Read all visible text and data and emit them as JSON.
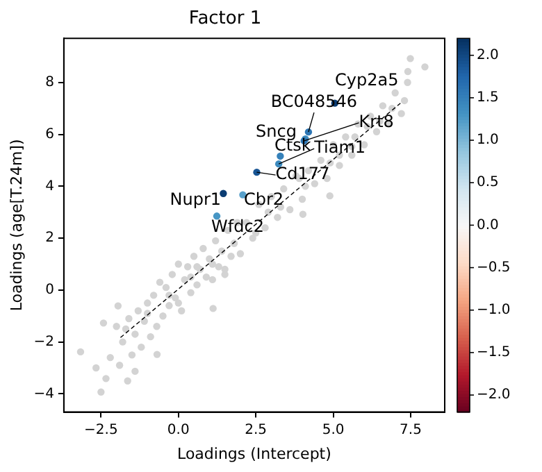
{
  "chart_data": {
    "type": "scatter",
    "title": "Factor 1",
    "xlabel": "Loadings (Intercept)",
    "ylabel": "Loadings (age[T.24m])",
    "xlim": [
      -3.7,
      8.6
    ],
    "ylim": [
      -4.7,
      9.7
    ],
    "xticks": [
      {
        "value": -2.5,
        "label": "−2.5"
      },
      {
        "value": 0,
        "label": "0.0"
      },
      {
        "value": 2.5,
        "label": "2.5"
      },
      {
        "value": 5,
        "label": "5.0"
      },
      {
        "value": 7.5,
        "label": "7.5"
      }
    ],
    "yticks": [
      {
        "value": -4,
        "label": "−4"
      },
      {
        "value": -2,
        "label": "−2"
      },
      0,
      2,
      4,
      6,
      8
    ],
    "clim": [
      -2.2,
      2.2
    ],
    "cticks": [
      {
        "value": -2,
        "label": "−2.0"
      },
      {
        "value": -1.5,
        "label": "−1.5"
      },
      {
        "value": -1,
        "label": "−1.0"
      },
      {
        "value": -0.5,
        "label": "−0.5"
      },
      {
        "value": 0,
        "label": "0.0"
      },
      {
        "value": 0.5,
        "label": "0.5"
      },
      {
        "value": 1,
        "label": "1.0"
      },
      {
        "value": 1.5,
        "label": "1.5"
      },
      {
        "value": 2,
        "label": "2.0"
      }
    ],
    "grid": false,
    "series": [
      {
        "color": "#d3d3d3",
        "marker": "circle",
        "x": [
          -3.16,
          -2.5,
          -2.66,
          -2.34,
          -2.42,
          -1.95,
          -1.64,
          -1.4,
          -0.69,
          1.12,
          4.02,
          4.89,
          5.6,
          7.49,
          7.96,
          7.41,
          -2.2,
          -2.0,
          -1.9,
          -1.8,
          -1.6,
          -1.5,
          -1.4,
          -1.3,
          -1.2,
          -1.1,
          -1.0,
          -0.9,
          -0.8,
          -0.7,
          -0.6,
          -0.5,
          -0.4,
          -0.3,
          -0.2,
          -0.1,
          0.0,
          0.1,
          0.2,
          0.3,
          0.4,
          0.5,
          0.6,
          0.7,
          0.8,
          0.9,
          1.0,
          1.1,
          1.2,
          1.3,
          1.4,
          1.5,
          1.6,
          1.7,
          1.8,
          1.9,
          2.0,
          2.2,
          2.4,
          2.6,
          2.8,
          3.0,
          3.2,
          3.4,
          3.6,
          3.8,
          4.0,
          4.2,
          4.4,
          4.6,
          4.8,
          5.0,
          5.2,
          5.4,
          5.6,
          5.8,
          6.0,
          6.2,
          6.4,
          6.6,
          6.8,
          7.0,
          7.2,
          7.4,
          -1.7,
          -1.0,
          -0.3,
          0.4,
          1.1,
          1.8,
          2.5,
          3.3,
          4.1,
          4.9,
          5.7,
          6.5,
          7.3,
          0.0,
          0.6,
          1.5,
          2.9,
          3.9,
          5.2,
          6.1,
          6.9
        ],
        "values": [
          -2.38,
          -3.93,
          -3.0,
          -3.41,
          -1.27,
          -0.61,
          -3.5,
          -3.13,
          -2.48,
          -0.71,
          2.92,
          3.63,
          5.53,
          8.92,
          8.6,
          8.42,
          -2.6,
          -1.4,
          -2.9,
          -2.0,
          -1.1,
          -2.5,
          -1.7,
          -0.8,
          -2.2,
          -1.2,
          -0.5,
          -1.8,
          -0.2,
          -1.4,
          0.3,
          -1.0,
          0.1,
          -0.6,
          0.6,
          -0.3,
          1.0,
          -0.8,
          0.4,
          0.9,
          -0.1,
          1.3,
          0.2,
          0.8,
          1.6,
          0.5,
          1.2,
          0.4,
          1.9,
          0.9,
          1.5,
          0.8,
          2.3,
          1.3,
          1.8,
          2.6,
          1.4,
          2.6,
          2.0,
          3.3,
          2.4,
          3.6,
          2.8,
          3.9,
          3.1,
          4.4,
          3.5,
          4.6,
          4.1,
          5.0,
          4.3,
          5.6,
          4.8,
          5.9,
          5.2,
          6.4,
          5.6,
          6.7,
          6.1,
          7.1,
          6.4,
          7.6,
          6.8,
          8.0,
          -1.5,
          -0.9,
          -0.2,
          0.5,
          1.0,
          1.8,
          2.2,
          3.2,
          4.0,
          4.9,
          5.9,
          6.5,
          7.3,
          -0.5,
          0.9,
          0.6,
          3.0,
          4.3,
          5.2,
          6.3,
          7.0
        ]
      },
      {
        "type": "line",
        "color": "#000000",
        "line_style": "dashed",
        "marker": "none",
        "x": [
          -1.87,
          7.17
        ],
        "values": [
          -1.83,
          7.2
        ]
      },
      {
        "x": [
          5.05,
          4.2,
          4.1,
          4.06,
          3.29,
          3.24,
          2.53,
          1.45,
          2.08,
          1.24
        ],
        "values": [
          7.2,
          6.09,
          5.82,
          5.75,
          5.16,
          4.86,
          4.54,
          3.72,
          3.67,
          2.85
        ],
        "marker": "circle",
        "colors": [
          "#0b3c72",
          "#2d76b4",
          "#3d8bbf",
          "#2d76b4",
          "#3581ba",
          "#3d8bbf",
          "#185594",
          "#0b3c72",
          "#58a0ca",
          "#4796c4"
        ]
      }
    ],
    "annotations": [
      {
        "text": "Cyp2a5",
        "x": 5.05,
        "y": 7.2
      },
      {
        "text": "BC048546",
        "x": 4.2,
        "y": 6.09
      },
      {
        "text": "Sncg",
        "x": 4.1,
        "y": 5.82
      },
      {
        "text": "Krt8",
        "x": 4.06,
        "y": 5.75
      },
      {
        "text": "Ctsk",
        "x": 3.29,
        "y": 5.16
      },
      {
        "text": "Tiam1",
        "x": 3.24,
        "y": 4.86
      },
      {
        "text": "Cd177",
        "x": 2.53,
        "y": 4.54
      },
      {
        "text": "Nupr1",
        "x": 1.45,
        "y": 3.72
      },
      {
        "text": "Cbr2",
        "x": 2.08,
        "y": 3.67
      },
      {
        "text": "Wfdc2",
        "x": 1.24,
        "y": 2.85
      }
    ]
  }
}
